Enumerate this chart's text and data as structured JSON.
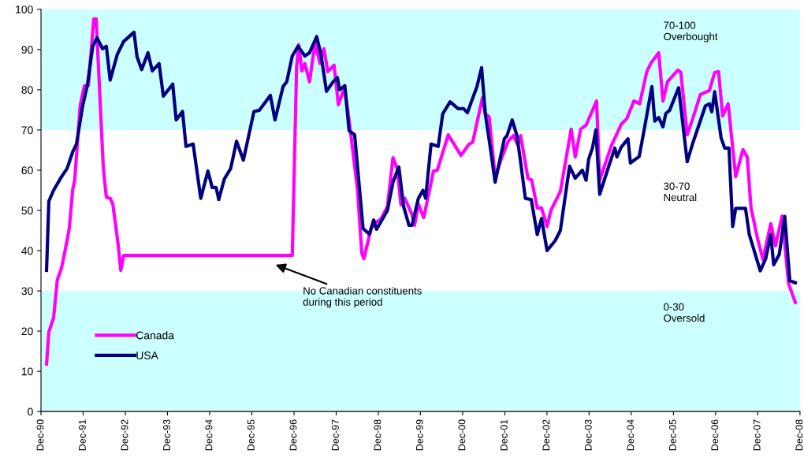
{
  "chart_data": {
    "type": "line",
    "xlim": [
      "1990-12-31",
      "2008-12-31"
    ],
    "xticks": [
      {
        "value": "1990-12-31",
        "label": "Dec-90"
      },
      {
        "value": "1991-12-31",
        "label": "Dec-91"
      },
      {
        "value": "1992-12-31",
        "label": "Dec-92"
      },
      {
        "value": "1993-12-31",
        "label": "Dec-93"
      },
      {
        "value": "1994-12-31",
        "label": "Dec-94"
      },
      {
        "value": "1995-12-31",
        "label": "Dec-95"
      },
      {
        "value": "1996-12-31",
        "label": "Dec-96"
      },
      {
        "value": "1997-12-31",
        "label": "Dec-97"
      },
      {
        "value": "1998-12-31",
        "label": "Dec-98"
      },
      {
        "value": "1999-12-31",
        "label": "Dec-99"
      },
      {
        "value": "2000-12-31",
        "label": "Dec-00"
      },
      {
        "value": "2001-12-31",
        "label": "Dec-01"
      },
      {
        "value": "2002-12-31",
        "label": "Dec-02"
      },
      {
        "value": "2003-12-31",
        "label": "Dec-03"
      },
      {
        "value": "2004-12-31",
        "label": "Dec-04"
      },
      {
        "value": "2005-12-31",
        "label": "Dec-05"
      },
      {
        "value": "2006-12-31",
        "label": "Dec-06"
      },
      {
        "value": "2007-12-31",
        "label": "Dec-07"
      },
      {
        "value": "2008-12-31",
        "label": "Dec-08"
      }
    ],
    "ylim": [
      0,
      100
    ],
    "yticks": [
      0,
      10,
      20,
      30,
      40,
      50,
      60,
      70,
      80,
      90,
      100
    ],
    "grid": false,
    "legend": "bottom left",
    "marker": "none",
    "line_style": "solid",
    "bands": [
      {
        "axis": "y",
        "from": 70,
        "to": 100,
        "label": "70-100\nOverbought",
        "color": "#ccffff"
      },
      {
        "axis": "y",
        "from": 0,
        "to": 30,
        "label": "0-30\nOversold",
        "color": "#ccffff"
      }
    ],
    "annotations": [
      "30-70\nNeutral",
      "No Canadian constituents\nduring this period"
    ],
    "series": [
      {
        "name": "Canada",
        "color": "#ff00ff",
        "x": [
          "1991-02-17",
          "1991-03-09",
          "1991-04-19",
          "1991-05-21",
          "1991-06-27",
          "1991-07-29",
          "1991-09-02",
          "1991-10-01",
          "1991-10-19",
          "1991-12-05",
          "1992-01-11",
          "1992-02-14",
          "1992-04-01",
          "1992-04-22",
          "1992-06-23",
          "1992-07-19",
          "1992-08-21",
          "1992-09-13",
          "1992-10-29",
          "1992-11-21",
          "1992-12-16",
          "1996-12-16",
          "1997-01-22",
          "1997-02-10",
          "1997-03-09",
          "1997-04-04",
          "1997-05-14",
          "1997-07-01",
          "1997-08-14",
          "1997-09-16",
          "1997-10-19",
          "1997-12-13",
          "1998-01-19",
          "1998-03-13",
          "1998-04-22",
          "1998-07-04",
          "1998-08-10",
          "1998-08-28",
          "1998-10-29",
          "1998-12-02",
          "1999-01-22",
          "1999-03-20",
          "1999-05-07",
          "1999-06-13",
          "1999-07-15",
          "1999-08-17",
          "1999-10-19",
          "1999-11-10",
          "1999-12-13",
          "2000-01-29",
          "2000-04-22",
          "2000-05-25",
          "2000-08-28",
          "2000-12-16",
          "2001-02-25",
          "2001-03-27",
          "2001-06-20",
          "2001-07-15",
          "2001-08-17",
          "2001-10-08",
          "2001-12-05",
          "2002-01-29",
          "2002-03-16",
          "2002-04-22",
          "2002-05-17",
          "2002-07-19",
          "2002-08-21",
          "2002-10-08",
          "2002-11-14",
          "2003-01-01",
          "2003-02-03",
          "2003-04-26",
          "2003-07-29",
          "2003-09-02",
          "2003-10-19",
          "2003-12-05",
          "2004-03-05",
          "2004-04-01",
          "2004-07-11",
          "2004-10-04",
          "2004-11-21",
          "2005-01-22",
          "2005-03-13",
          "2005-05-14",
          "2005-06-20",
          "2005-08-25",
          "2005-10-01",
          "2005-11-10",
          "2006-02-07",
          "2006-03-05",
          "2006-04-29",
          "2006-06-16",
          "2006-08-21",
          "2006-11-07",
          "2006-12-23",
          "2007-01-26",
          "2007-03-02",
          "2007-04-19",
          "2007-06-23",
          "2007-08-25",
          "2007-10-01",
          "2007-11-03",
          "2007-12-27",
          "2008-02-14",
          "2008-04-22",
          "2008-06-02",
          "2008-07-29",
          "2008-09-23",
          "2008-11-21"
        ],
        "values": [
          11.8,
          19.8,
          23.3,
          32.7,
          35.7,
          40.2,
          45.5,
          55.1,
          57.5,
          76,
          81,
          81,
          97.6,
          97.6,
          60.4,
          53.3,
          53,
          51.6,
          41.6,
          35.1,
          38.8,
          38.8,
          85.5,
          91.2,
          84.7,
          86.5,
          82,
          91.6,
          86.5,
          90.2,
          84.5,
          86.1,
          76.3,
          80.4,
          72.5,
          55.1,
          39.4,
          38,
          45.5,
          46.9,
          47.8,
          51,
          63.1,
          60.4,
          51.4,
          53,
          49,
          46.3,
          51.6,
          48.2,
          59.8,
          60,
          68.8,
          63.7,
          66.5,
          66.9,
          78,
          74,
          73.3,
          58.4,
          63.1,
          67.2,
          68.6,
          66.3,
          68.6,
          58,
          57.5,
          50.6,
          50.6,
          46,
          50,
          54.7,
          70.2,
          63.3,
          70.2,
          71.2,
          77.2,
          57.5,
          66.1,
          71.4,
          72.8,
          77.2,
          76.5,
          84.5,
          86.7,
          89.2,
          77.2,
          82,
          84.9,
          84.3,
          68.8,
          72.8,
          78.8,
          79.8,
          84.3,
          84.5,
          73.5,
          76.5,
          58.4,
          65.1,
          63.3,
          50.6,
          43.3,
          37.8,
          46.7,
          41.2,
          48.6,
          31.8,
          27.1
        ]
      },
      {
        "name": "USA",
        "color": "#000080",
        "x": [
          "1991-02-17",
          "1991-03-09",
          "1991-04-19",
          "1991-06-27",
          "1991-08-14",
          "1991-10-01",
          "1991-11-03",
          "1991-12-27",
          "1992-02-07",
          "1992-03-23",
          "1992-04-29",
          "1992-06-16",
          "1992-07-19",
          "1992-08-21",
          "1992-10-22",
          "1992-12-16",
          "1993-03-16",
          "1993-04-11",
          "1993-05-21",
          "1993-07-15",
          "1993-08-21",
          "1993-10-19",
          "1993-11-25",
          "1994-02-14",
          "1994-03-16",
          "1994-05-10",
          "1994-06-09",
          "1994-08-10",
          "1994-10-15",
          "1994-12-16",
          "1995-01-22",
          "1995-02-25",
          "1995-03-20",
          "1995-05-07",
          "1995-07-01",
          "1995-08-21",
          "1995-10-19",
          "1996-01-19",
          "1996-03-05",
          "1996-06-09",
          "1996-07-19",
          "1996-09-27",
          "1996-10-29",
          "1996-12-16",
          "1997-02-03",
          "1997-04-04",
          "1997-05-14",
          "1997-07-15",
          "1997-08-21",
          "1997-10-08",
          "1997-12-05",
          "1998-01-11",
          "1998-01-29",
          "1998-03-16",
          "1998-04-22",
          "1998-06-09",
          "1998-08-21",
          "1998-10-15",
          "1998-11-21",
          "1998-12-16",
          "1999-03-20",
          "1999-05-07",
          "1999-06-27",
          "1999-08-07",
          "1999-09-23",
          "1999-10-19",
          "1999-12-13",
          "2000-01-22",
          "2000-02-14",
          "2000-04-01",
          "2000-06-02",
          "2000-07-11",
          "2000-09-13",
          "2000-11-21",
          "2001-01-08",
          "2001-02-10",
          "2001-03-20",
          "2001-05-03",
          "2001-06-13",
          "2001-07-15",
          "2001-09-02",
          "2001-10-08",
          "2001-12-27",
          "2002-01-19",
          "2002-03-05",
          "2002-04-15",
          "2002-05-10",
          "2002-06-27",
          "2002-08-17",
          "2002-10-08",
          "2002-11-14",
          "2003-01-01",
          "2003-03-13",
          "2003-04-26",
          "2003-07-15",
          "2003-09-02",
          "2003-11-03",
          "2003-12-05",
          "2003-12-27",
          "2004-01-29",
          "2004-02-28",
          "2004-04-01",
          "2004-06-23",
          "2004-08-10",
          "2004-08-28",
          "2004-10-04",
          "2004-12-02",
          "2004-12-23",
          "2005-03-09",
          "2005-04-26",
          "2005-06-27",
          "2005-07-22",
          "2005-08-25",
          "2005-10-01",
          "2005-10-26",
          "2005-11-28",
          "2006-02-14",
          "2006-04-29",
          "2006-06-16",
          "2006-10-04",
          "2006-11-07",
          "2006-11-28",
          "2006-12-23",
          "2007-02-17",
          "2007-03-20",
          "2007-04-26",
          "2007-05-28",
          "2007-06-23",
          "2007-09-16",
          "2007-10-19",
          "2008-01-22",
          "2008-03-09",
          "2008-04-22",
          "2008-05-17",
          "2008-07-04",
          "2008-08-21",
          "2008-10-04",
          "2008-11-21"
        ],
        "values": [
          35.1,
          52.3,
          55,
          58.4,
          60.4,
          64.5,
          66.5,
          76,
          81.4,
          90.8,
          92.9,
          90.2,
          90.8,
          82.4,
          88.8,
          92,
          94.3,
          88.2,
          85,
          89.2,
          84.7,
          86.5,
          78.4,
          81.4,
          72.5,
          74.6,
          65.9,
          66.5,
          53,
          59.8,
          55.7,
          55.7,
          52.7,
          57.8,
          60.4,
          67.2,
          62.5,
          74.6,
          74.9,
          78.6,
          72.5,
          80.8,
          82,
          88.4,
          90.8,
          88.4,
          89.2,
          93.2,
          88.8,
          79.6,
          82,
          83,
          80,
          81,
          69.8,
          68.8,
          45.5,
          44.1,
          47.6,
          45.3,
          50,
          57,
          60.8,
          51,
          46.3,
          46.3,
          53,
          55,
          53,
          66.5,
          65.9,
          74,
          77,
          75.3,
          75.3,
          74.3,
          77.3,
          80.7,
          85.5,
          74,
          64.5,
          57,
          67.8,
          68.6,
          72.5,
          68.6,
          63.5,
          53,
          52.7,
          44,
          48,
          40,
          42.5,
          45,
          61,
          58,
          60,
          57.5,
          62.7,
          65.5,
          70,
          54,
          61.4,
          65.5,
          63.3,
          65.7,
          67.8,
          61.8,
          63.4,
          70.8,
          80.8,
          72.2,
          73.1,
          70.8,
          74.1,
          74.9,
          80.5,
          62.1,
          66.7,
          76,
          76.5,
          74.5,
          79.5,
          68,
          65.5,
          65.5,
          46,
          50.5,
          50.5,
          44,
          35,
          38,
          44,
          36.5,
          39,
          48.5,
          32.5,
          32
        ]
      }
    ]
  }
}
